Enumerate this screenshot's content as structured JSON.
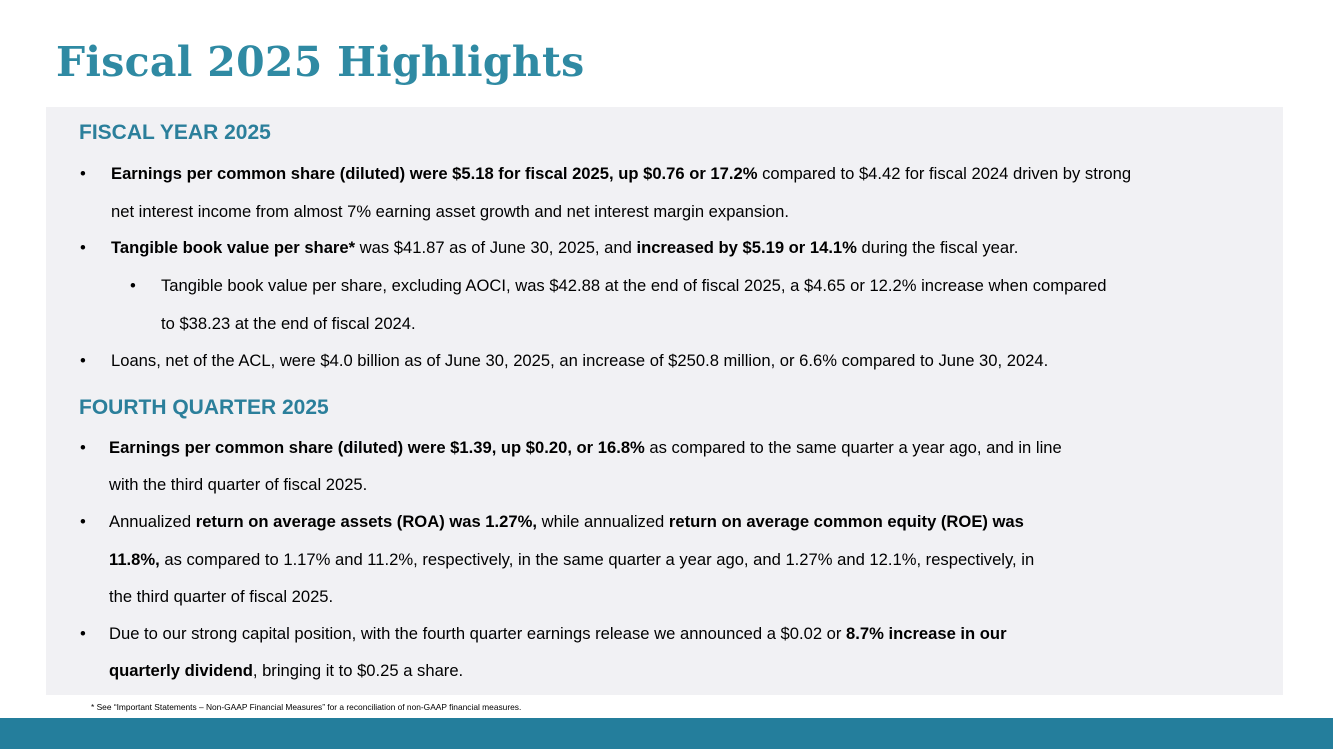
{
  "title": "Fiscal 2025 Highlights",
  "colors": {
    "title": "#2f8aa3",
    "heading": "#2b7f9b",
    "panel": "#f1f1f4",
    "bar": "#247e9c"
  },
  "bullet_char": "•",
  "fiscal_year": {
    "heading": "FISCAL YEAR 2025",
    "b1": {
      "l1_bold": "Earnings per common share (diluted) were $5.18 for fiscal 2025, up $0.76 or 17.2%",
      "l1_rest": " compared to $4.42 for fiscal 2024 driven by strong",
      "l2": "net interest income from almost 7% earning asset growth and net interest margin expansion."
    },
    "b2": {
      "bold1": "Tangible book value per share*",
      "text1": " was $41.87 as of June 30, 2025, and ",
      "bold2": "increased by $5.19 or 14.1%",
      "text2": " during the fiscal year."
    },
    "b2_sub": {
      "l1": "Tangible book value per share, excluding AOCI, was $42.88 at the end of fiscal 2025, a $4.65 or 12.2% increase when compared",
      "l2": "to $38.23 at the end of fiscal 2024."
    },
    "b3": "Loans, net of the ACL, were $4.0 billion as of June 30, 2025, an increase of $250.8 million, or 6.6% compared to June 30, 2024."
  },
  "fourth_quarter": {
    "heading": "FOURTH QUARTER 2025",
    "b1": {
      "l1_bold": "Earnings per common share (diluted) were $1.39, up $0.20, or 16.8%",
      "l1_rest": " as compared to the same quarter a year ago, and in line",
      "l2": "with the third quarter of fiscal 2025."
    },
    "b2": {
      "l1_text1": "Annualized ",
      "l1_bold1": "return on average assets (ROA) was 1.27%,",
      "l1_text2": " while annualized ",
      "l1_bold2": "return on average common equity (ROE) was",
      "l2_bold": "11.8%,",
      "l2_rest": " as compared to 1.17% and 11.2%, respectively, in the same quarter a year ago, and 1.27% and 12.1%, respectively, in",
      "l3": "the third quarter of fiscal 2025."
    },
    "b3": {
      "l1_text": "Due to our strong capital position, with the fourth quarter earnings release we announced a $0.02 or ",
      "l1_bold": "8.7% increase in our",
      "l2_bold": "quarterly dividend",
      "l2_rest": ", bringing it to $0.25 a share."
    }
  },
  "footnote": "* See “Important Statements – Non-GAAP Financial Measures” for a reconciliation of non-GAAP financial measures."
}
